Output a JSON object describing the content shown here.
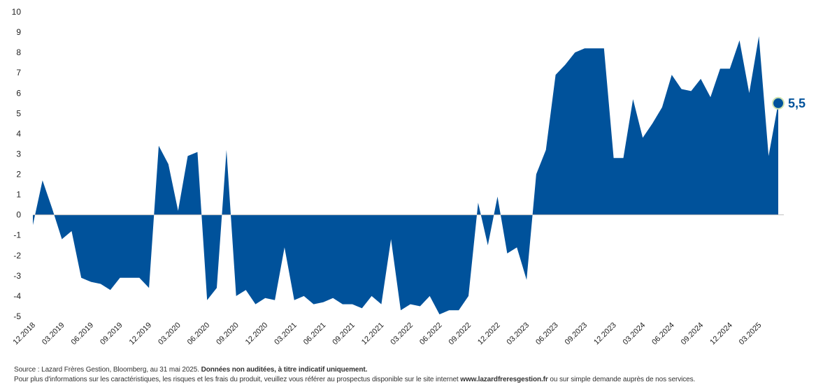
{
  "chart_data": {
    "type": "area",
    "color": "#00529b",
    "ylim": [
      -5,
      10
    ],
    "yticks": [
      "10",
      "9",
      "8",
      "7",
      "6",
      "5",
      "4",
      "3",
      "2",
      "1",
      "0",
      "-1",
      "-2",
      "-3",
      "-4",
      "-5"
    ],
    "x_tick_labels": [
      "12.2018",
      "03.2019",
      "06.2019",
      "09.2019",
      "12.2019",
      "03.2020",
      "06.2020",
      "09.2020",
      "12.2020",
      "03.2021",
      "06.2021",
      "09.2021",
      "12.2021",
      "03.2022",
      "06.2022",
      "09.2022",
      "12.2022",
      "03.2023",
      "06.2023",
      "09.2023",
      "12.2023",
      "03.2024",
      "06.2024",
      "09.2024",
      "12.2024",
      "03.2025"
    ],
    "series": [
      {
        "x": [
          "12.2018",
          "01.2019",
          "02.2019",
          "03.2019",
          "04.2019",
          "05.2019",
          "06.2019",
          "07.2019",
          "08.2019",
          "09.2019",
          "10.2019",
          "11.2019",
          "12.2019",
          "01.2020",
          "02.2020",
          "03.2020",
          "04.2020",
          "05.2020",
          "06.2020",
          "07.2020",
          "08.2020",
          "09.2020",
          "10.2020",
          "11.2020",
          "12.2020",
          "01.2021",
          "02.2021",
          "03.2021",
          "04.2021",
          "05.2021",
          "06.2021",
          "07.2021",
          "08.2021",
          "09.2021",
          "10.2021",
          "11.2021",
          "12.2021",
          "01.2022",
          "02.2022",
          "03.2022",
          "04.2022",
          "05.2022",
          "06.2022",
          "07.2022",
          "08.2022",
          "09.2022",
          "10.2022",
          "11.2022",
          "12.2022",
          "01.2023",
          "02.2023",
          "03.2023",
          "04.2023",
          "05.2023",
          "06.2023",
          "07.2023",
          "08.2023",
          "09.2023",
          "10.2023",
          "11.2023",
          "12.2023",
          "01.2024",
          "02.2024",
          "03.2024",
          "04.2024",
          "05.2024",
          "06.2024",
          "07.2024",
          "08.2024",
          "09.2024",
          "10.2024",
          "11.2024",
          "12.2024",
          "01.2025",
          "02.2025",
          "03.2025",
          "04.2025",
          "05.2025"
        ],
        "values": [
          -0.5,
          1.7,
          0.3,
          -1.2,
          -0.8,
          -3.1,
          -3.3,
          -3.4,
          -3.7,
          -3.1,
          -3.1,
          -3.1,
          -3.6,
          3.4,
          2.5,
          0.2,
          2.9,
          3.1,
          -4.2,
          -3.6,
          3.2,
          -4.0,
          -3.7,
          -4.4,
          -4.1,
          -4.2,
          -1.6,
          -4.2,
          -4.0,
          -4.4,
          -4.3,
          -4.1,
          -4.4,
          -4.4,
          -4.6,
          -4.0,
          -4.4,
          -1.2,
          -4.7,
          -4.4,
          -4.5,
          -4.0,
          -4.9,
          -4.7,
          -4.7,
          -4.0,
          0.6,
          -1.5,
          0.9,
          -1.9,
          -1.6,
          -3.2,
          2.0,
          3.2,
          6.9,
          7.4,
          8.0,
          8.2,
          8.2,
          8.2,
          2.8,
          2.8,
          5.7,
          3.8,
          4.5,
          5.3,
          6.9,
          6.2,
          6.1,
          6.7,
          5.8,
          7.2,
          7.2,
          8.6,
          6.0,
          8.8,
          2.9,
          5.5
        ]
      }
    ],
    "end_label": "5,5"
  },
  "footer": {
    "source_plain": "Source : Lazard Frères Gestion, Bloomberg, au 31 mai 2025. ",
    "source_bold": "Données non auditées, à titre indicatif uniquement.",
    "info_plain_1": "Pour plus d'informations sur les caractéristiques, les risques et les frais du produit, veuillez vous référer au prospectus disponible sur le site internet ",
    "info_bold": "www.lazardfreresgestion.fr",
    "info_plain_2": " ou sur simple demande auprès de nos services."
  }
}
